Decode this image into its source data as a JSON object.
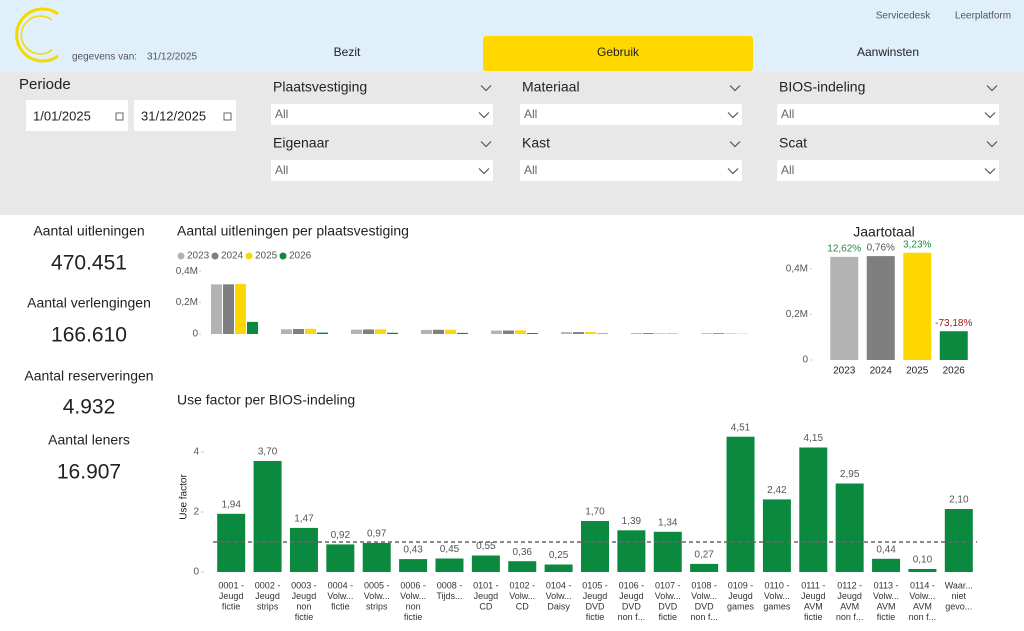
{
  "header": {
    "date_label": "gegevens van:",
    "date": "31/12/2025",
    "tabs": [
      "Bezit",
      "Gebruik",
      "Aanwinsten"
    ],
    "active_tab": 1,
    "links": [
      "Servicedesk",
      "Leerplatform"
    ]
  },
  "filters": {
    "period_label": "Periode",
    "start": "1/01/2025",
    "end": "31/12/2025",
    "slicers": [
      {
        "label": "Plaatsvestiging",
        "value": "All"
      },
      {
        "label": "Materiaal",
        "value": "All"
      },
      {
        "label": "BIOS-indeling",
        "value": "All"
      },
      {
        "label": "Eigenaar",
        "value": "All"
      },
      {
        "label": "Kast",
        "value": "All"
      },
      {
        "label": "Scat",
        "value": "All"
      }
    ]
  },
  "kpis": [
    {
      "label": "Aantal uitleningen",
      "value": "470.451"
    },
    {
      "label": "Aantal verlengingen",
      "value": "166.610"
    },
    {
      "label": "Aantal reserveringen",
      "value": "4.932"
    },
    {
      "label": "Aantal leners",
      "value": "16.907"
    }
  ],
  "chart_data": [
    {
      "type": "grouped-bar",
      "title": "Aantal uitleningen per plaatsvestiging",
      "categories": [
        null,
        null,
        null,
        null,
        null,
        null,
        null,
        null
      ],
      "series": [
        {
          "name": "2023",
          "color": "#b3b3b3",
          "values": [
            316000,
            30000,
            28000,
            26000,
            22000,
            12000,
            6000,
            5000
          ]
        },
        {
          "name": "2024",
          "color": "#7f7f7f",
          "values": [
            316000,
            32000,
            29000,
            27000,
            22000,
            12000,
            6000,
            5000
          ]
        },
        {
          "name": "2025",
          "color": "#ffd700",
          "values": [
            318000,
            33000,
            30000,
            27000,
            23000,
            13000,
            6000,
            5000
          ]
        },
        {
          "name": "2026",
          "color": "#0b8a3f",
          "values": [
            77000,
            9000,
            8000,
            7000,
            6000,
            3000,
            2000,
            1000
          ]
        }
      ],
      "ylim": [
        0,
        420000
      ],
      "yticks": [
        0,
        {
          "value": 200000,
          "label": "0,2M"
        },
        {
          "value": 400000,
          "label": "0,4M"
        }
      ]
    },
    {
      "type": "bar",
      "title": "Jaartotaal",
      "categories": [
        "2023",
        "2024",
        "2025",
        "2026"
      ],
      "values": [
        452260,
        455700,
        470451,
        126170
      ],
      "colors": [
        "#b3b3b3",
        "#7f7f7f",
        "#ffd700",
        "#0b8a3f"
      ],
      "annotations": [
        {
          "text": "12,62%",
          "color": "#1e8c45"
        },
        {
          "text": "0,76%",
          "color": "#555555"
        },
        {
          "text": "3,23%",
          "color": "#1e8c45"
        },
        {
          "text": "-73,18%",
          "color": "#a01818"
        }
      ],
      "ylim": [
        0,
        500000
      ],
      "yticks": [
        0,
        {
          "value": 200000,
          "label": "0,2M"
        },
        {
          "value": 400000,
          "label": "0,4M"
        }
      ]
    },
    {
      "type": "bar",
      "title": "Use factor per BIOS-indeling",
      "y_label": "Use factor",
      "color": "#0b8a3f",
      "reference_line": 1,
      "categories": [
        [
          "0001 -",
          "Jeugd",
          "fictie"
        ],
        [
          "0002 -",
          "Jeugd",
          "strips"
        ],
        [
          "0003 -",
          "Jeugd",
          "non",
          "fictie"
        ],
        [
          "0004 -",
          "Volw...",
          "fictie"
        ],
        [
          "0005 -",
          "Volw...",
          "strips"
        ],
        [
          "0006 -",
          "Volw...",
          "non",
          "fictie"
        ],
        [
          "0008 -",
          "Tijds..."
        ],
        [
          "0101 -",
          "Jeugd",
          "CD"
        ],
        [
          "0102 -",
          "Volw...",
          "CD"
        ],
        [
          "0104 -",
          "Volw...",
          "Daisy"
        ],
        [
          "0105 -",
          "Jeugd",
          "DVD",
          "fictie"
        ],
        [
          "0106 -",
          "Jeugd",
          "DVD",
          "non f..."
        ],
        [
          "0107 -",
          "Volw...",
          "DVD",
          "fictie"
        ],
        [
          "0108 -",
          "Volw...",
          "DVD",
          "non f..."
        ],
        [
          "0109 -",
          "Jeugd",
          "games"
        ],
        [
          "0110 -",
          "Volw...",
          "games"
        ],
        [
          "0111 -",
          "Jeugd",
          "AVM",
          "fictie"
        ],
        [
          "0112 -",
          "Jeugd",
          "AVM",
          "non f..."
        ],
        [
          "0113 -",
          "Volw...",
          "AVM",
          "fictie"
        ],
        [
          "0114 -",
          "Volw...",
          "AVM",
          "non f..."
        ],
        [
          "Waar...",
          "niet",
          "gevo..."
        ]
      ],
      "values": [
        1.94,
        3.7,
        1.47,
        0.92,
        0.97,
        0.43,
        0.45,
        0.55,
        0.36,
        0.25,
        1.7,
        1.39,
        1.34,
        0.27,
        4.51,
        2.42,
        4.15,
        2.95,
        0.44,
        0.1,
        2.1
      ],
      "value_labels": [
        "1,94",
        "3,70",
        "1,47",
        "0,92",
        "0,97",
        "0,43",
        "0,45",
        "0,55",
        "0,36",
        "0,25",
        "1,70",
        "1,39",
        "1,34",
        "0,27",
        "4,51",
        "2,42",
        "4,15",
        "2,95",
        "0,44",
        "0,10",
        "2,10"
      ],
      "ylim": [
        0,
        4.8
      ],
      "yticks": [
        0,
        2,
        4
      ]
    }
  ]
}
